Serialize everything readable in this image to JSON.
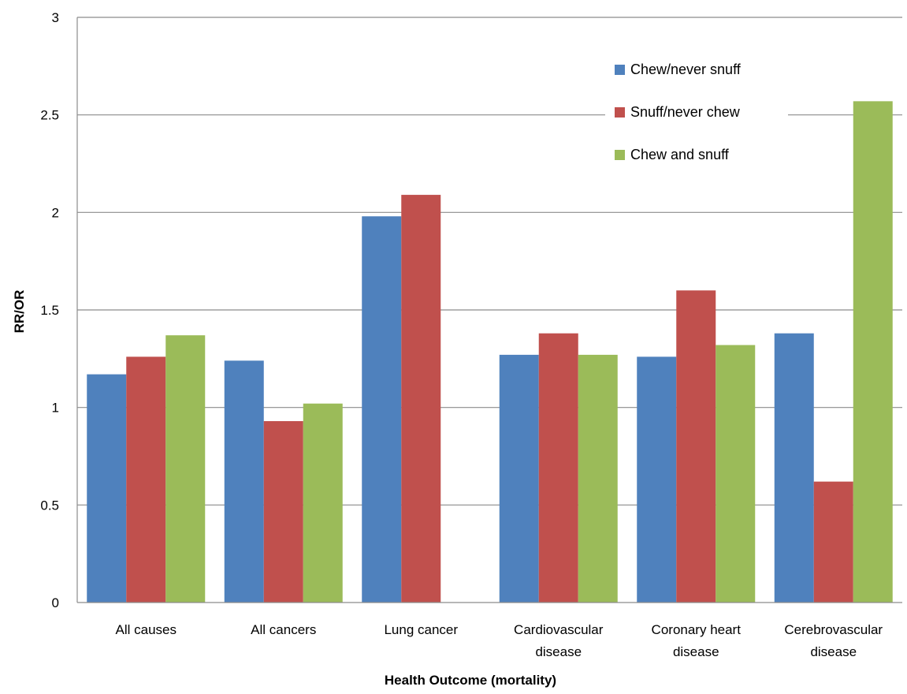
{
  "chart_data": {
    "type": "bar",
    "title": "",
    "xlabel": "Health Outcome (mortality)",
    "ylabel": "RR/OR",
    "ylim": [
      0,
      3
    ],
    "yticks": [
      0,
      0.5,
      1,
      1.5,
      2,
      2.5,
      3
    ],
    "ytick_labels": [
      "0",
      "0.5",
      "1",
      "1.5",
      "2",
      "2.5",
      "3"
    ],
    "grid": true,
    "legend_position": "top-right",
    "categories": [
      "All causes",
      "All cancers",
      "Lung cancer",
      "Cardiovascular disease",
      "Coronary heart disease",
      "Cerebrovascular disease"
    ],
    "category_lines": [
      [
        "All causes"
      ],
      [
        "All cancers"
      ],
      [
        "Lung cancer"
      ],
      [
        "Cardiovascular",
        "disease"
      ],
      [
        "Coronary heart",
        "disease"
      ],
      [
        "Cerebrovascular",
        "disease"
      ]
    ],
    "series": [
      {
        "name": "Chew/never snuff",
        "color": "#4f81bd",
        "values": [
          1.17,
          1.24,
          1.98,
          1.27,
          1.26,
          1.38
        ]
      },
      {
        "name": "Snuff/never chew",
        "color": "#c0504d",
        "values": [
          1.26,
          0.93,
          2.09,
          1.38,
          1.6,
          0.62
        ]
      },
      {
        "name": "Chew and snuff",
        "color": "#9bbb59",
        "values": [
          1.37,
          1.02,
          null,
          1.27,
          1.32,
          2.57
        ]
      }
    ]
  }
}
